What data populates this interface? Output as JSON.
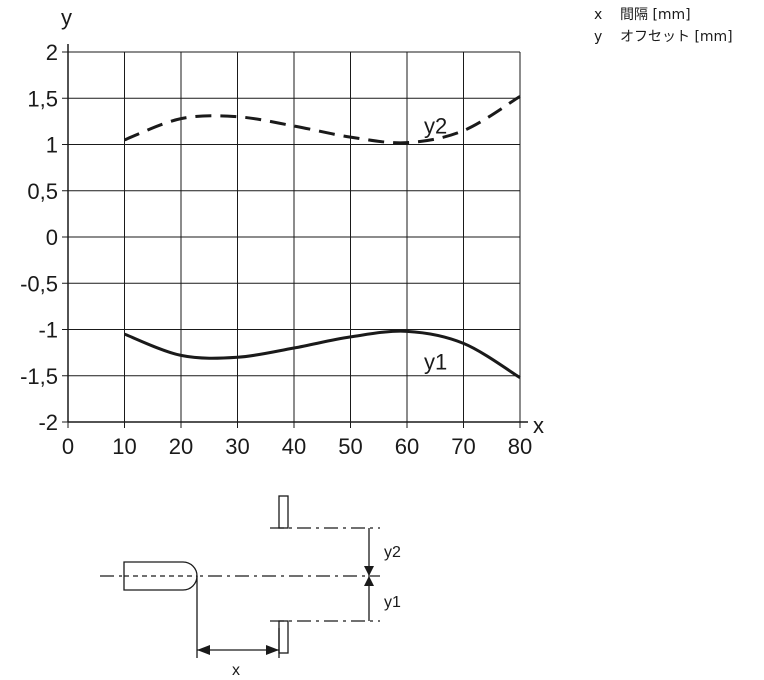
{
  "legend": [
    {
      "symbol": "x",
      "text": "間隔 [mm]"
    },
    {
      "symbol": "y",
      "text": "オフセット [mm]"
    }
  ],
  "chart_data": {
    "type": "line",
    "xlabel": "x",
    "ylabel": "y",
    "xlim": [
      0,
      80
    ],
    "ylim": [
      -2,
      2
    ],
    "grid": true,
    "x_ticks": [
      "0",
      "10",
      "20",
      "30",
      "40",
      "50",
      "60",
      "70",
      "80"
    ],
    "y_ticks": [
      "2",
      "1,5",
      "1",
      "0,5",
      "0",
      "-0,5",
      "-1",
      "-1,5",
      "-2"
    ],
    "series": [
      {
        "name": "y1",
        "style": "solid",
        "x": [
          10,
          20,
          30,
          40,
          50,
          60,
          70,
          80
        ],
        "y": [
          -1.05,
          -1.28,
          -1.3,
          -1.2,
          -1.08,
          -1.02,
          -1.15,
          -1.52
        ]
      },
      {
        "name": "y2",
        "style": "dashed",
        "x": [
          10,
          20,
          30,
          40,
          50,
          60,
          70,
          80
        ],
        "y": [
          1.05,
          1.28,
          1.3,
          1.2,
          1.08,
          1.02,
          1.15,
          1.52
        ]
      }
    ]
  },
  "diagram": {
    "labels": {
      "y2": "y2",
      "y1": "y1",
      "x": "x"
    }
  },
  "colors": {
    "line": "#1a1a1a",
    "grid": "#1a1a1a"
  }
}
